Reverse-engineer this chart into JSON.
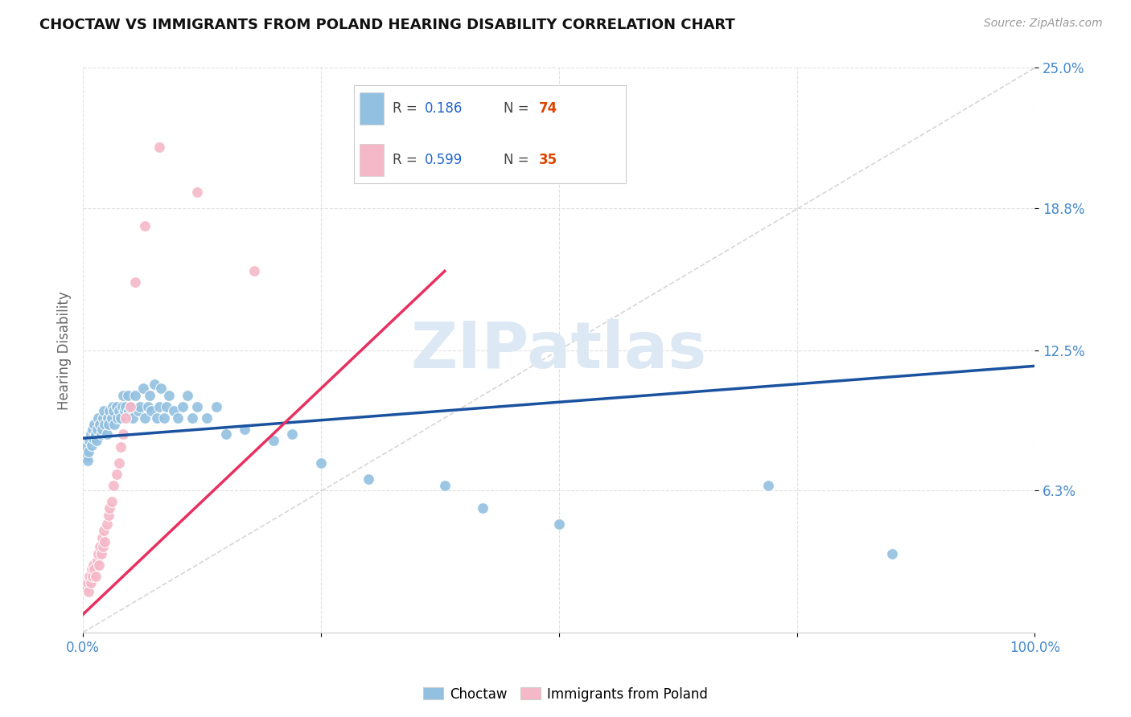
{
  "title": "CHOCTAW VS IMMIGRANTS FROM POLAND HEARING DISABILITY CORRELATION CHART",
  "source": "Source: ZipAtlas.com",
  "ylabel": "Hearing Disability",
  "xlim": [
    0.0,
    1.0
  ],
  "ylim": [
    0.0,
    0.25
  ],
  "ytick_positions": [
    0.063,
    0.125,
    0.188,
    0.25
  ],
  "ytick_labels": [
    "6.3%",
    "12.5%",
    "18.8%",
    "25.0%"
  ],
  "choctaw_color": "#92c0e0",
  "poland_color": "#f5b8c8",
  "trend_blue": "#1a52a0",
  "trend_pink": "#e83060",
  "watermark": "ZIPatlas",
  "choctaw_x": [
    0.003,
    0.004,
    0.005,
    0.006,
    0.007,
    0.008,
    0.009,
    0.01,
    0.011,
    0.012,
    0.013,
    0.014,
    0.015,
    0.016,
    0.018,
    0.019,
    0.02,
    0.021,
    0.022,
    0.023,
    0.025,
    0.026,
    0.027,
    0.028,
    0.03,
    0.031,
    0.032,
    0.033,
    0.035,
    0.036,
    0.038,
    0.04,
    0.041,
    0.042,
    0.044,
    0.045,
    0.047,
    0.048,
    0.05,
    0.052,
    0.055,
    0.058,
    0.06,
    0.063,
    0.065,
    0.068,
    0.07,
    0.072,
    0.075,
    0.078,
    0.08,
    0.082,
    0.085,
    0.088,
    0.09,
    0.095,
    0.1,
    0.105,
    0.11,
    0.115,
    0.12,
    0.13,
    0.14,
    0.15,
    0.17,
    0.2,
    0.22,
    0.25,
    0.3,
    0.38,
    0.42,
    0.5,
    0.72,
    0.85
  ],
  "choctaw_y": [
    0.082,
    0.078,
    0.076,
    0.08,
    0.085,
    0.088,
    0.083,
    0.09,
    0.086,
    0.092,
    0.088,
    0.085,
    0.09,
    0.095,
    0.092,
    0.088,
    0.09,
    0.095,
    0.098,
    0.092,
    0.088,
    0.095,
    0.092,
    0.098,
    0.095,
    0.1,
    0.098,
    0.092,
    0.1,
    0.095,
    0.098,
    0.095,
    0.1,
    0.105,
    0.098,
    0.1,
    0.105,
    0.098,
    0.1,
    0.095,
    0.105,
    0.098,
    0.1,
    0.108,
    0.095,
    0.1,
    0.105,
    0.098,
    0.11,
    0.095,
    0.1,
    0.108,
    0.095,
    0.1,
    0.105,
    0.098,
    0.095,
    0.1,
    0.105,
    0.095,
    0.1,
    0.095,
    0.1,
    0.088,
    0.09,
    0.085,
    0.088,
    0.075,
    0.068,
    0.065,
    0.055,
    0.048,
    0.065,
    0.035
  ],
  "poland_x": [
    0.003,
    0.005,
    0.006,
    0.007,
    0.008,
    0.009,
    0.01,
    0.011,
    0.012,
    0.013,
    0.015,
    0.016,
    0.017,
    0.018,
    0.019,
    0.02,
    0.021,
    0.022,
    0.023,
    0.025,
    0.027,
    0.028,
    0.03,
    0.032,
    0.035,
    0.038,
    0.04,
    0.042,
    0.045,
    0.05,
    0.055,
    0.065,
    0.08,
    0.12,
    0.18
  ],
  "poland_y": [
    0.02,
    0.022,
    0.018,
    0.025,
    0.022,
    0.028,
    0.025,
    0.03,
    0.028,
    0.025,
    0.032,
    0.035,
    0.03,
    0.038,
    0.035,
    0.042,
    0.038,
    0.045,
    0.04,
    0.048,
    0.052,
    0.055,
    0.058,
    0.065,
    0.07,
    0.075,
    0.082,
    0.088,
    0.095,
    0.1,
    0.155,
    0.18,
    0.215,
    0.195,
    0.16
  ]
}
